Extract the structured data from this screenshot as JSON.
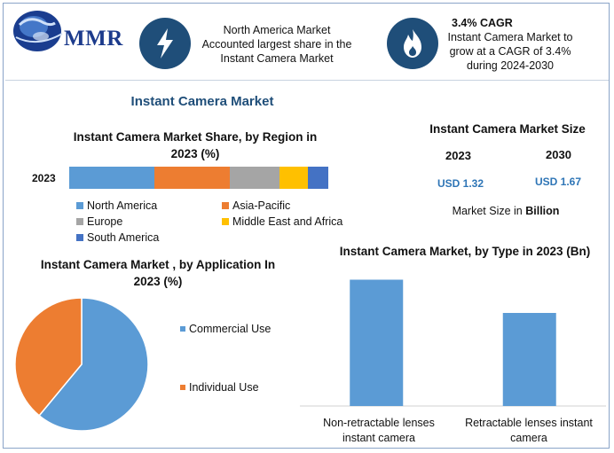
{
  "header": {
    "logo_text": "MMR",
    "info1": {
      "icon": "lightning-icon",
      "lines": [
        "North America Market",
        "Accounted largest share in the",
        "Instant Camera Market"
      ]
    },
    "info2": {
      "icon": "flame-icon",
      "title": "3.4% CAGR",
      "lines": [
        "Instant Camera Market to",
        "grow at a CAGR of 3.4%",
        "during 2024-2030"
      ]
    }
  },
  "main_title": "Instant Camera Market",
  "market_size": {
    "title": "Instant Camera Market Size",
    "year1": "2023",
    "year2": "2030",
    "value1": "USD 1.32",
    "value2": "USD 1.67",
    "note_prefix": "Market Size in ",
    "note_bold": "Billion"
  },
  "colors": {
    "north_america": "#5b9bd5",
    "asia_pacific": "#ed7d31",
    "europe": "#a5a5a5",
    "mea": "#ffc000",
    "south_america": "#4472c4",
    "commercial": "#5b9bd5",
    "individual": "#ed7d31",
    "bar": "#5b9bd5",
    "title_blue": "#1f4e79"
  },
  "chart_data": [
    {
      "type": "bar",
      "orientation": "horizontal-stacked",
      "title": "Instant Camera Market Share, by Region in 2023 (%)",
      "categories": [
        "2023"
      ],
      "series": [
        {
          "name": "North America",
          "values": [
            33
          ]
        },
        {
          "name": "Asia-Pacific",
          "values": [
            29
          ]
        },
        {
          "name": "Europe",
          "values": [
            19
          ]
        },
        {
          "name": "Middle East and Africa",
          "values": [
            11
          ]
        },
        {
          "name": "South America",
          "values": [
            8
          ]
        }
      ],
      "legend": "bottom"
    },
    {
      "type": "pie",
      "title": "Instant Camera Market , by Application In 2023 (%)",
      "labels": [
        "Commercial Use",
        "Individual Use"
      ],
      "values": [
        61,
        39
      ],
      "legend": "right"
    },
    {
      "type": "bar",
      "title": "Instant Camera Market, by Type in 2023 (Bn)",
      "categories": [
        "Non-retractable lenses instant camera",
        "Retractable lenses instant camera"
      ],
      "category_lines": [
        [
          "Non-retractable lenses",
          "instant camera"
        ],
        [
          "Retractable lenses instant",
          "camera"
        ]
      ],
      "values": [
        0.76,
        0.56
      ],
      "ylim": [
        0,
        0.8
      ]
    }
  ]
}
